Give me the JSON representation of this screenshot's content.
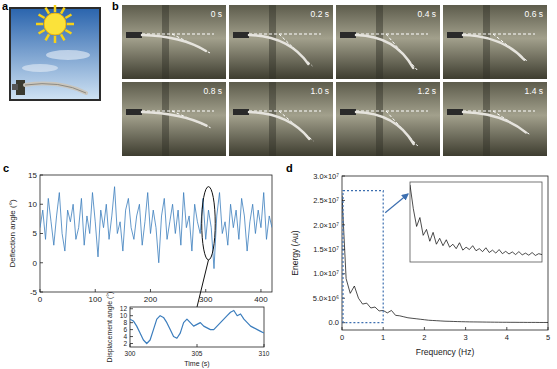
{
  "panel_labels": [
    "a",
    "b",
    "c",
    "d"
  ],
  "frame_times": [
    "0 s",
    "0.2 s",
    "0.4 s",
    "0.6 s",
    "0.8 s",
    "1.0 s",
    "1.2 s",
    "1.4 s"
  ],
  "chart_data": [
    {
      "type": "line",
      "ylabel": "Deflection angle (°)",
      "color": "#3b7dbd",
      "x": [
        0,
        5,
        10,
        15,
        20,
        25,
        30,
        35,
        40,
        45,
        50,
        55,
        60,
        65,
        70,
        75,
        80,
        85,
        90,
        95,
        100,
        105,
        110,
        115,
        120,
        125,
        130,
        135,
        140,
        145,
        150,
        155,
        160,
        165,
        170,
        175,
        180,
        185,
        190,
        195,
        200,
        205,
        210,
        215,
        220,
        225,
        230,
        235,
        240,
        245,
        250,
        255,
        260,
        265,
        270,
        275,
        280,
        285,
        290,
        295,
        300,
        305,
        310,
        315,
        320,
        325,
        330,
        335,
        340,
        345,
        350,
        355,
        360,
        365,
        370,
        375,
        380,
        385,
        390,
        395,
        400,
        405,
        410,
        415,
        420
      ],
      "values": [
        6,
        9,
        4,
        11,
        7,
        3,
        8,
        12,
        5,
        2,
        9,
        7,
        10,
        4,
        6,
        11,
        3,
        8,
        5,
        12,
        7,
        1,
        9,
        6,
        10,
        4,
        8,
        13,
        5,
        7,
        2,
        9,
        11,
        6,
        4,
        8,
        10,
        3,
        7,
        12,
        5,
        9,
        6,
        0,
        8,
        11,
        4,
        7,
        10,
        5,
        9,
        3,
        12,
        6,
        8,
        2,
        10,
        7,
        5,
        11,
        4,
        9,
        6,
        -1,
        8,
        12,
        5,
        7,
        3,
        10,
        6,
        9,
        4,
        11,
        8,
        2,
        7,
        10,
        5,
        9,
        6,
        12,
        4,
        8,
        6
      ],
      "xlim": [
        0,
        420
      ],
      "ylim": [
        -5,
        15
      ],
      "xticks": [
        0,
        100,
        200,
        300,
        400
      ],
      "yticks": [
        -5,
        0,
        5,
        10,
        15
      ]
    },
    {
      "type": "line",
      "xlabel": "Time (s)",
      "ylabel": "Displacement angle (°)",
      "color": "#3b7dbd",
      "x": [
        300,
        300.25,
        300.5,
        300.75,
        301,
        301.25,
        301.5,
        301.75,
        302,
        302.25,
        302.5,
        302.75,
        303,
        303.25,
        303.5,
        303.75,
        304,
        304.25,
        304.5,
        304.75,
        305,
        305.25,
        305.5,
        305.75,
        306,
        306.25,
        306.5,
        306.75,
        307,
        307.25,
        307.5,
        307.75,
        308,
        308.25,
        308.5,
        308.75,
        309,
        309.25,
        309.5,
        309.75,
        310
      ],
      "values": [
        9,
        8.5,
        7,
        5,
        3,
        2,
        3,
        6,
        9,
        10,
        9.5,
        8,
        6,
        4,
        3.5,
        5,
        8,
        9,
        8,
        7,
        7.5,
        8,
        7,
        6.5,
        6,
        6,
        7,
        8,
        9,
        10,
        11,
        11.5,
        10,
        10.5,
        9,
        8,
        7,
        6.5,
        6,
        5.5,
        5
      ],
      "xlim": [
        300,
        310
      ],
      "ylim": [
        1,
        12.5
      ],
      "xticks": [
        300,
        305,
        310
      ],
      "yticks": [
        2,
        4,
        6,
        8,
        10,
        12
      ]
    },
    {
      "type": "line",
      "xlabel": "Frequency (Hz)",
      "ylabel": "Energy (Au)",
      "color": "#000000",
      "x": [
        0,
        0.1,
        0.2,
        0.3,
        0.4,
        0.5,
        0.6,
        0.7,
        0.8,
        0.9,
        1,
        1.1,
        1.2,
        1.3,
        1.4,
        1.5,
        1.6,
        1.7,
        1.8,
        1.9,
        2,
        2.1,
        2.2,
        2.3,
        2.4,
        2.5,
        2.6,
        2.7,
        2.8,
        2.9,
        3,
        3.1,
        3.2,
        3.3,
        3.4,
        3.5,
        3.6,
        3.7,
        3.8,
        3.9,
        4,
        4.1,
        4.2,
        4.3,
        4.4,
        4.5,
        4.6,
        4.7,
        4.8,
        4.9,
        5
      ],
      "values": [
        26000000,
        9000000,
        6000000,
        7500000,
        5000000,
        3800000,
        4000000,
        3000000,
        3200000,
        2400000,
        2500000,
        2000000,
        2500000,
        1500000,
        1400000,
        1200000,
        1000000,
        900000,
        800000,
        700000,
        600000,
        500000,
        450000,
        400000,
        350000,
        300000,
        280000,
        250000,
        220000,
        200000,
        180000,
        160000,
        150000,
        140000,
        130000,
        120000,
        110000,
        100000,
        90000,
        80000,
        80000,
        70000,
        70000,
        60000,
        60000,
        50000,
        50000,
        50000,
        40000,
        40000,
        40000
      ],
      "xlim": [
        0,
        5
      ],
      "ylim": [
        -1500000,
        30000000
      ],
      "xticks": [
        0,
        1,
        2,
        3,
        4,
        5
      ],
      "yticks": [
        {
          "value": 0,
          "label": "0.0"
        },
        {
          "value": 5000000,
          "label": "5.0×10⁶"
        },
        {
          "value": 10000000,
          "label": "1.0×10⁷"
        },
        {
          "value": 15000000,
          "label": "1.5×10⁷"
        },
        {
          "value": 20000000,
          "label": "2.0×10⁷"
        },
        {
          "value": 25000000,
          "label": "2.5×10⁷"
        },
        {
          "value": 30000000,
          "label": "3.0×10⁷"
        }
      ]
    },
    {
      "type": "line",
      "color": "#000000",
      "tick_labels": false,
      "x": [
        0,
        0.025,
        0.05,
        0.075,
        0.1,
        0.125,
        0.15,
        0.175,
        0.2,
        0.225,
        0.25,
        0.275,
        0.3,
        0.325,
        0.35,
        0.375,
        0.4,
        0.425,
        0.45,
        0.475,
        0.5,
        0.525,
        0.55,
        0.575,
        0.6,
        0.625,
        0.65,
        0.675,
        0.7,
        0.725,
        0.75,
        0.775,
        0.8,
        0.825,
        0.85,
        0.875,
        0.9,
        0.925,
        0.95,
        0.975,
        1
      ],
      "values": [
        26000000,
        18000000,
        12000000,
        15000000,
        9000000,
        11000000,
        7000000,
        10000000,
        6000000,
        8000000,
        5500000,
        7500000,
        5000000,
        6000000,
        4500000,
        6500000,
        4000000,
        5000000,
        4200000,
        5500000,
        3800000,
        4500000,
        3500000,
        4800000,
        3200000,
        4000000,
        3000000,
        4200000,
        2800000,
        3600000,
        2700000,
        3400000,
        2500000,
        3500000,
        2400000,
        3000000,
        2300000,
        3200000,
        2200000,
        2800000,
        2500000
      ],
      "xlim": [
        0,
        1
      ],
      "ylim": [
        0,
        27000000
      ]
    }
  ]
}
